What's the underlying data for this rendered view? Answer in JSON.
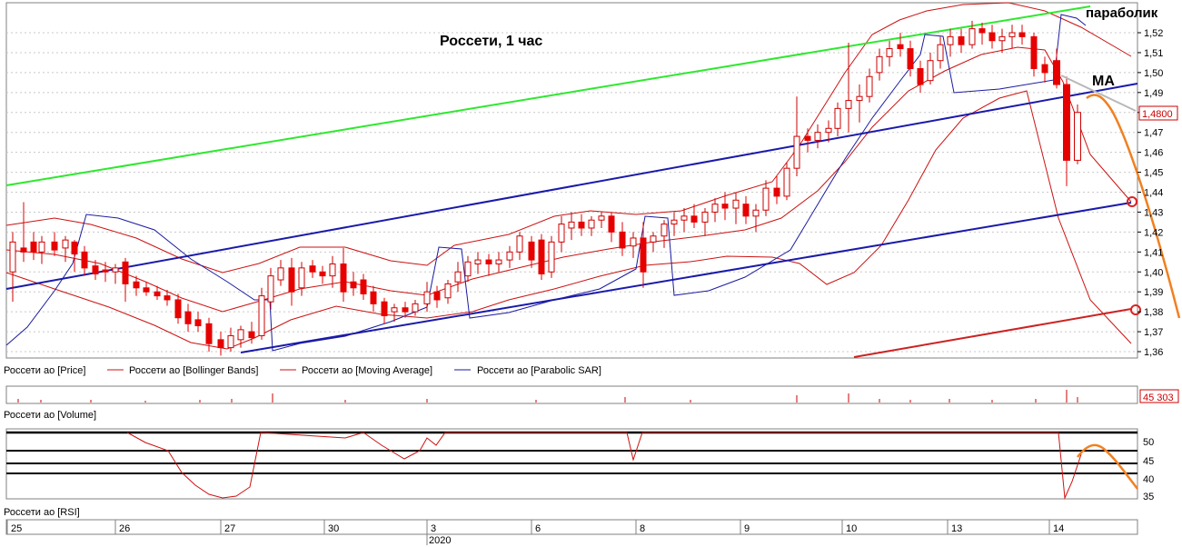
{
  "title": "Россети,  1 час",
  "annotations": {
    "parabolic": "параболик",
    "ma": "MA"
  },
  "price_axis": {
    "ticks": [
      "1,52",
      "1,51",
      "1,50",
      "1,49",
      "1,48",
      "1,47",
      "1,46",
      "1,45",
      "1,44",
      "1,43",
      "1,42",
      "1,41",
      "1,40",
      "1,39",
      "1,38",
      "1,37",
      "1,36"
    ],
    "last_price": "1,4800"
  },
  "legend": {
    "price": "Россети ао [Price]",
    "bb": "Россети ао [Bollinger Bands]",
    "ma": "Россети ао [Moving Average]",
    "sar": "Россети ао [Parabolic SAR]"
  },
  "volume_panel": {
    "label": "Россети ао [Volume]",
    "last_value": "45 303"
  },
  "rsi_panel": {
    "label": "Россети ао [RSI]",
    "ticks": [
      "50",
      "45",
      "40",
      "35"
    ]
  },
  "time_axis": {
    "days": [
      "25",
      "26",
      "27",
      "30",
      "3",
      "6",
      "8",
      "9",
      "10",
      "13",
      "14"
    ],
    "year": "2020"
  },
  "colors": {
    "bull": "#ffffff",
    "bear": "#e60000",
    "candle_outline": "#cc0000",
    "bollinger": "#cc1111",
    "moving_average": "#cc1111",
    "sar": "#1a1aa0",
    "channel_green": "#2ee82e",
    "channel_blue": "#1a1aaa",
    "channel_red": "#cc2222",
    "forecast": "#f08020"
  },
  "chart_data": {
    "type": "candlestick",
    "title": "Россети,  1 час",
    "series": [
      {
        "name": "Россети ао [Price]",
        "ohlc_sample": [
          [
            1.405,
            1.418,
            1.404,
            1.416
          ],
          [
            1.416,
            1.417,
            1.406,
            1.408
          ],
          [
            1.408,
            1.41,
            1.403,
            1.405
          ],
          [
            1.4,
            1.401,
            1.386,
            1.388
          ],
          [
            1.385,
            1.386,
            1.373,
            1.377
          ],
          [
            1.377,
            1.378,
            1.362,
            1.364
          ],
          [
            1.372,
            1.402,
            1.369,
            1.398
          ],
          [
            1.392,
            1.41,
            1.389,
            1.4
          ],
          [
            1.397,
            1.398,
            1.385,
            1.388
          ],
          [
            1.384,
            1.402,
            1.38,
            1.398
          ],
          [
            1.402,
            1.408,
            1.398,
            1.405
          ],
          [
            1.42,
            1.425,
            1.418,
            1.422
          ],
          [
            1.42,
            1.43,
            1.418,
            1.428
          ],
          [
            1.428,
            1.439,
            1.425,
            1.435
          ],
          [
            1.434,
            1.446,
            1.43,
            1.442
          ],
          [
            1.44,
            1.468,
            1.436,
            1.465
          ],
          [
            1.47,
            1.49,
            1.466,
            1.488
          ],
          [
            1.486,
            1.514,
            1.483,
            1.51
          ],
          [
            1.502,
            1.522,
            1.497,
            1.518
          ],
          [
            1.52,
            1.526,
            1.516,
            1.522
          ],
          [
            1.516,
            1.522,
            1.498,
            1.5
          ],
          [
            1.499,
            1.503,
            1.452,
            1.455
          ],
          [
            1.455,
            1.482,
            1.453,
            1.48
          ]
        ]
      },
      {
        "name": "Россети ао [Bollinger Bands]"
      },
      {
        "name": "Россети ао [Moving Average]"
      },
      {
        "name": "Россети ао [Parabolic SAR]"
      },
      {
        "name": "Россети ао [Volume]",
        "last": 45303
      },
      {
        "name": "Россети ао [RSI]",
        "ylim": [
          34,
          54
        ],
        "levels": [
          50,
          45,
          40
        ]
      }
    ],
    "ylim": [
      1.355,
      1.533
    ],
    "x_labels": [
      "25",
      "26",
      "27",
      "30",
      "3",
      "6",
      "8",
      "9",
      "10",
      "13",
      "14"
    ]
  }
}
